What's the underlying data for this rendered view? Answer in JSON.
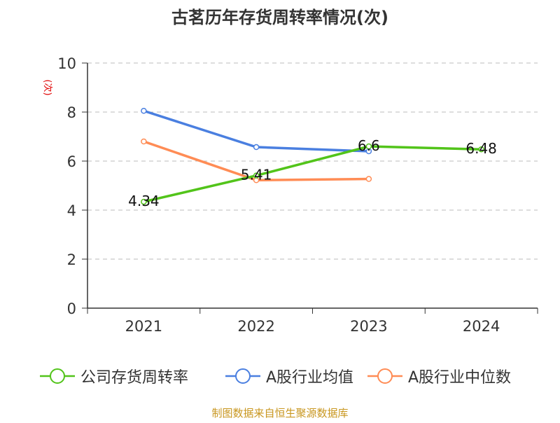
{
  "chart_data": {
    "type": "line",
    "title": "古茗历年存货周转率情况(次)",
    "ylabel": "(次)",
    "xlabel": "",
    "categories": [
      "2021",
      "2022",
      "2023",
      "2024"
    ],
    "ylim": [
      0,
      10
    ],
    "yticks": [
      "0",
      "2",
      "4",
      "6",
      "8",
      "10"
    ],
    "grid": true,
    "legend_position": "bottom",
    "series": [
      {
        "name": "公司存货周转率",
        "color": "#52c41a",
        "values": [
          4.34,
          5.41,
          6.6,
          6.48
        ],
        "labels": [
          "4.34",
          "5.41",
          "6.6",
          "6.48"
        ]
      },
      {
        "name": "A股行业均值",
        "color": "#4a7fe0",
        "values": [
          8.05,
          6.57,
          6.4,
          null
        ]
      },
      {
        "name": "A股行业中位数",
        "color": "#ff8c55",
        "values": [
          6.8,
          5.22,
          5.27,
          null
        ]
      }
    ],
    "source": "制图数据来自恒生聚源数据库"
  }
}
